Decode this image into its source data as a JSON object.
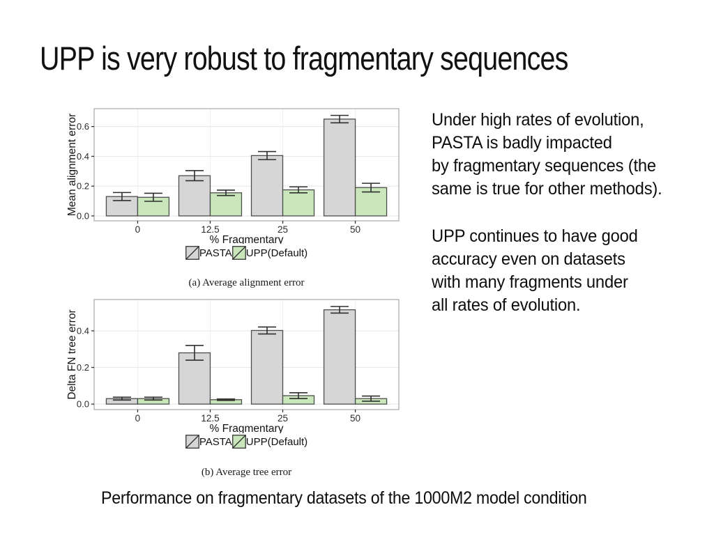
{
  "slide": {
    "title": "UPP is very robust to fragmentary sequences",
    "bottom_caption": "Performance on fragmentary datasets of the 1000M2 model condition"
  },
  "side_text": {
    "p1": [
      "Under high rates of evolution,",
      "PASTA is badly impacted",
      "by fragmentary sequences (the",
      "same is true for other methods)."
    ],
    "p2": [
      "UPP continues to have good",
      "accuracy even on datasets",
      "with many fragments under",
      "all rates of evolution."
    ]
  },
  "colors": {
    "pasta_fill": "#d6d6d6",
    "upp_fill": "#c9e7bb",
    "bar_border": "#4d4d4d",
    "error_bar": "#2e2e2e",
    "grid": "#e9e9e9",
    "panel_border": "#a8a8a8",
    "axis_text": "#2b2b2b",
    "tick_mark": "#333333"
  },
  "chart_data": [
    {
      "type": "bar",
      "title": "(a) Average alignment error",
      "categories": [
        "0",
        "12.5",
        "25",
        "50"
      ],
      "xlabel": "% Fragmentary",
      "ylabel": "Mean alignment error",
      "yticks": [
        0.0,
        0.2,
        0.4,
        0.6
      ],
      "ylim": [
        -0.033,
        0.72
      ],
      "legend": [
        "PASTA",
        "UPP(Default)"
      ],
      "series": [
        {
          "name": "PASTA",
          "fill": "#d6d6d6",
          "values": [
            0.13,
            0.27,
            0.405,
            0.65
          ],
          "errors": [
            0.027,
            0.034,
            0.027,
            0.025
          ]
        },
        {
          "name": "UPP(Default)",
          "fill": "#c9e7bb",
          "values": [
            0.125,
            0.155,
            0.175,
            0.19
          ],
          "errors": [
            0.027,
            0.018,
            0.02,
            0.029
          ]
        }
      ]
    },
    {
      "type": "bar",
      "title": "(b) Average tree error",
      "categories": [
        "0",
        "12.5",
        "25",
        "50"
      ],
      "xlabel": "% Fragmentary",
      "ylabel": "Delta FN tree error",
      "yticks": [
        0.0,
        0.2,
        0.4
      ],
      "ylim": [
        -0.03,
        0.571
      ],
      "legend": [
        "PASTA",
        "UPP(Default)"
      ],
      "series": [
        {
          "name": "PASTA",
          "fill": "#d6d6d6",
          "values": [
            0.03,
            0.28,
            0.402,
            0.515
          ],
          "errors": [
            0.008,
            0.04,
            0.019,
            0.018
          ]
        },
        {
          "name": "UPP(Default)",
          "fill": "#c9e7bb",
          "values": [
            0.03,
            0.024,
            0.046,
            0.03
          ],
          "errors": [
            0.008,
            0.004,
            0.016,
            0.014
          ]
        }
      ]
    }
  ]
}
